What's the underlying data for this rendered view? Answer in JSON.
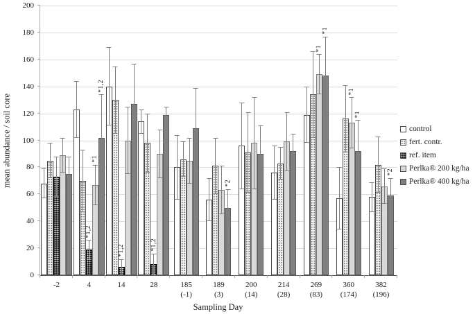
{
  "chart_data": {
    "type": "bar",
    "title": "",
    "xlabel": "Sampling Day",
    "ylabel": "mean abundance / soil core",
    "ylim": [
      0,
      200
    ],
    "yticks": [
      0,
      20,
      40,
      60,
      80,
      100,
      120,
      140,
      160,
      180,
      200
    ],
    "grid": "horizontal",
    "legend_position": "right",
    "categories": [
      {
        "label": "-2",
        "sub": ""
      },
      {
        "label": "4",
        "sub": ""
      },
      {
        "label": "14",
        "sub": ""
      },
      {
        "label": "28",
        "sub": ""
      },
      {
        "label": "185",
        "sub": "(-1)"
      },
      {
        "label": "189",
        "sub": "(3)"
      },
      {
        "label": "200",
        "sub": "(14)"
      },
      {
        "label": "214",
        "sub": "(28)"
      },
      {
        "label": "269",
        "sub": "(83)"
      },
      {
        "label": "360",
        "sub": "(174)"
      },
      {
        "label": "382",
        "sub": "(196)"
      }
    ],
    "series": [
      {
        "name": "control",
        "pattern": "outline-white",
        "values": [
          68,
          123,
          140,
          114,
          80,
          56,
          96,
          76,
          119,
          57,
          58
        ],
        "errors": [
          11,
          21,
          29,
          9,
          24,
          16,
          32,
          20,
          21,
          23,
          11
        ],
        "notes": [
          null,
          null,
          null,
          null,
          null,
          null,
          null,
          null,
          null,
          null,
          null
        ]
      },
      {
        "name": "fert. contr.",
        "pattern": "dots-light",
        "values": [
          85,
          70,
          130,
          98,
          86,
          81,
          91,
          83,
          134,
          116,
          82
        ],
        "errors": [
          13,
          23,
          25,
          22,
          13,
          21,
          30,
          12,
          32,
          25,
          21
        ],
        "notes": [
          null,
          null,
          null,
          null,
          null,
          null,
          null,
          null,
          null,
          null,
          null
        ]
      },
      {
        "name": "ref. item",
        "pattern": "dots-black",
        "values": [
          73,
          19,
          6,
          8,
          null,
          null,
          null,
          null,
          null,
          null,
          null
        ],
        "errors": [
          15,
          7,
          6,
          8,
          null,
          null,
          null,
          null,
          null,
          null,
          null
        ],
        "notes": [
          null,
          "*1,2",
          "*1,2",
          "*1,2",
          null,
          null,
          null,
          null,
          null,
          null,
          null
        ]
      },
      {
        "name": "Perlka® 200 kg/ha",
        "pattern": "solid-light",
        "values": [
          89,
          67,
          100,
          90,
          85,
          63,
          98,
          99,
          149,
          113,
          66
        ],
        "errors": [
          13,
          15,
          25,
          18,
          17,
          18,
          34,
          22,
          15,
          19,
          13
        ],
        "notes": [
          null,
          "*1",
          null,
          null,
          null,
          null,
          null,
          null,
          "*1",
          "*1",
          null
        ]
      },
      {
        "name": "Perlka® 400 kg/ha",
        "pattern": "solid-dark",
        "values": [
          75,
          102,
          127,
          119,
          109,
          50,
          90,
          92,
          148,
          92,
          59
        ],
        "errors": [
          13,
          32,
          30,
          6,
          30,
          14,
          21,
          13,
          29,
          23,
          13
        ],
        "notes": [
          null,
          "*1,2",
          null,
          null,
          null,
          "*2",
          null,
          null,
          "*1",
          "*1",
          "*2"
        ]
      }
    ]
  }
}
